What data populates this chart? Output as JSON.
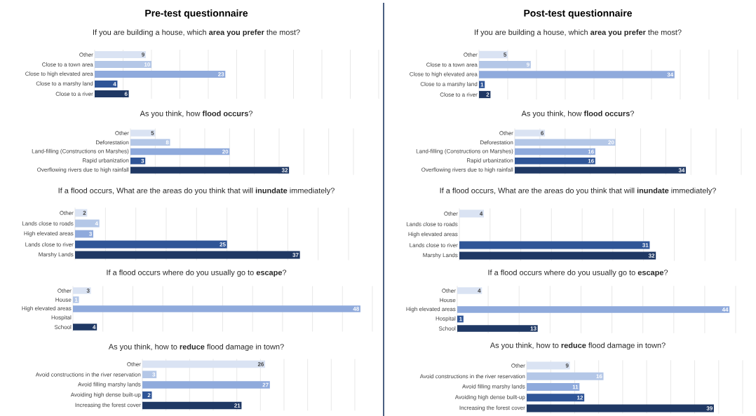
{
  "chart_data": [
    {
      "type": "bar",
      "orientation": "horizontal",
      "annotations": [
        "Pre-test questionnaire"
      ],
      "title": "If you are building a house, which **area you prefer** the most?",
      "categories": [
        "Other",
        "Close to a town area",
        "Close to high elevated area",
        "Close to a marshy land",
        "Close to a river"
      ],
      "values": [
        9,
        10,
        23,
        4,
        6
      ],
      "colors": [
        "#dae3f3",
        "#b4c7e7",
        "#8faadc",
        "#2f5597",
        "#1f3864"
      ],
      "data_labels": true,
      "grid": "x",
      "tick_labels": "y",
      "xlim": [
        0,
        50
      ],
      "xticks": [
        {
          "value": 0,
          "label": null
        },
        {
          "value": 5,
          "label": null
        },
        {
          "value": 10,
          "label": null
        },
        {
          "value": 15,
          "label": null
        },
        {
          "value": 20,
          "label": null
        },
        {
          "value": 25,
          "label": null
        },
        {
          "value": 30,
          "label": null
        },
        {
          "value": 35,
          "label": null
        },
        {
          "value": 40,
          "label": null
        },
        {
          "value": 45,
          "label": null
        },
        {
          "value": 50,
          "label": null
        }
      ]
    },
    {
      "type": "bar",
      "orientation": "horizontal",
      "title": "As you think, how **flood occurs**?",
      "categories": [
        "Other",
        "Deforestation",
        "Land-filling (Constructions on Marshes)",
        "Rapid urbanization",
        "Overflowing rivers due to high rainfall"
      ],
      "values": [
        5,
        8,
        20,
        3,
        32
      ],
      "colors": [
        "#dae3f3",
        "#b4c7e7",
        "#8faadc",
        "#2f5597",
        "#1f3864"
      ],
      "data_labels": true,
      "grid": "x",
      "tick_labels": "y",
      "xlim": [
        0,
        45
      ],
      "xticks": [
        {
          "value": 0,
          "label": null
        },
        {
          "value": 5,
          "label": null
        },
        {
          "value": 10,
          "label": null
        },
        {
          "value": 15,
          "label": null
        },
        {
          "value": 20,
          "label": null
        },
        {
          "value": 25,
          "label": null
        },
        {
          "value": 30,
          "label": null
        },
        {
          "value": 35,
          "label": null
        },
        {
          "value": 40,
          "label": null
        },
        {
          "value": 45,
          "label": null
        }
      ]
    },
    {
      "type": "bar",
      "orientation": "horizontal",
      "title": "If a flood occurs, What are the areas do you think that will **inundate** immediately?",
      "categories": [
        "Other",
        "Lands close to roads",
        "High elevated areas",
        "Lands close to river",
        "Marshy Lands"
      ],
      "values": [
        2,
        4,
        3,
        25,
        37
      ],
      "colors": [
        "#dae3f3",
        "#b4c7e7",
        "#8faadc",
        "#2f5597",
        "#1f3864"
      ],
      "data_labels": true,
      "grid": "x",
      "tick_labels": "y",
      "xlim": [
        0,
        45
      ],
      "xticks": [
        {
          "value": 0,
          "label": null
        },
        {
          "value": 5,
          "label": null
        },
        {
          "value": 10,
          "label": null
        },
        {
          "value": 15,
          "label": null
        },
        {
          "value": 20,
          "label": null
        },
        {
          "value": 25,
          "label": null
        },
        {
          "value": 30,
          "label": null
        },
        {
          "value": 35,
          "label": null
        },
        {
          "value": 40,
          "label": null
        },
        {
          "value": 45,
          "label": null
        }
      ]
    },
    {
      "type": "bar",
      "orientation": "horizontal",
      "title": "If a flood occurs where do you usually go to **escape**?",
      "categories": [
        "Other",
        "House",
        "High elevated areas",
        "Hospital",
        "School"
      ],
      "values": [
        3,
        1,
        48,
        null,
        4
      ],
      "colors": [
        "#dae3f3",
        "#b4c7e7",
        "#8faadc",
        "#2f5597",
        "#1f3864"
      ],
      "data_labels": true,
      "grid": "x",
      "tick_labels": "y",
      "xlim": [
        0,
        50
      ],
      "xticks": [
        {
          "value": 0,
          "label": null
        },
        {
          "value": 5,
          "label": null
        },
        {
          "value": 10,
          "label": null
        },
        {
          "value": 15,
          "label": null
        },
        {
          "value": 20,
          "label": null
        },
        {
          "value": 25,
          "label": null
        },
        {
          "value": 30,
          "label": null
        },
        {
          "value": 35,
          "label": null
        },
        {
          "value": 40,
          "label": null
        },
        {
          "value": 45,
          "label": null
        },
        {
          "value": 50,
          "label": null
        }
      ]
    },
    {
      "type": "bar",
      "orientation": "horizontal",
      "title": "As you think, how to **reduce** flood damage in town?",
      "categories": [
        "Other",
        "Avoid constructions in the river reservation",
        "Avoid filling marshy lands",
        "Avoiding high dense built-up",
        "Increasing the forest cover"
      ],
      "values": [
        26,
        3,
        27,
        2,
        21
      ],
      "colors": [
        "#dae3f3",
        "#b4c7e7",
        "#8faadc",
        "#2f5597",
        "#1f3864"
      ],
      "data_labels": true,
      "grid": "x",
      "tick_labels": "y",
      "xlim": [
        0,
        45
      ],
      "xticks": [
        {
          "value": 0,
          "label": null
        },
        {
          "value": 5,
          "label": null
        },
        {
          "value": 10,
          "label": null
        },
        {
          "value": 15,
          "label": null
        },
        {
          "value": 20,
          "label": null
        },
        {
          "value": 25,
          "label": null
        },
        {
          "value": 30,
          "label": null
        },
        {
          "value": 35,
          "label": null
        },
        {
          "value": 40,
          "label": null
        },
        {
          "value": 45,
          "label": null
        }
      ]
    },
    {
      "type": "bar",
      "orientation": "horizontal",
      "annotations": [
        "Post-test questionnaire"
      ],
      "title": "If you are building a house, which **area you prefer** the most?",
      "categories": [
        "Other",
        "Close to a town area",
        "Close to high elevated area",
        "Close to a marshy land",
        "Close to a river"
      ],
      "values": [
        5,
        9,
        34,
        1,
        2
      ],
      "colors": [
        "#dae3f3",
        "#b4c7e7",
        "#8faadc",
        "#2f5597",
        "#1f3864"
      ],
      "data_labels": true,
      "grid": "x",
      "tick_labels": "y",
      "xlim": [
        0,
        45
      ],
      "xticks": [
        {
          "value": 0,
          "label": null
        },
        {
          "value": 5,
          "label": null
        },
        {
          "value": 10,
          "label": null
        },
        {
          "value": 15,
          "label": null
        },
        {
          "value": 20,
          "label": null
        },
        {
          "value": 25,
          "label": null
        },
        {
          "value": 30,
          "label": null
        },
        {
          "value": 35,
          "label": null
        },
        {
          "value": 40,
          "label": null
        },
        {
          "value": 45,
          "label": null
        }
      ]
    },
    {
      "type": "bar",
      "orientation": "horizontal",
      "title": "As you think, how **flood occurs**?",
      "categories": [
        "Other",
        "Deforestation",
        "Land-filling (Constructions on Marshes)",
        "Rapid urbanization",
        "Overflowing rivers due to high rainfall"
      ],
      "values": [
        6,
        20,
        16,
        16,
        34
      ],
      "colors": [
        "#dae3f3",
        "#b4c7e7",
        "#8faadc",
        "#2f5597",
        "#1f3864"
      ],
      "data_labels": true,
      "grid": "x",
      "tick_labels": "y",
      "xlim": [
        0,
        45
      ],
      "xticks": [
        {
          "value": 0,
          "label": null
        },
        {
          "value": 5,
          "label": null
        },
        {
          "value": 10,
          "label": null
        },
        {
          "value": 15,
          "label": null
        },
        {
          "value": 20,
          "label": null
        },
        {
          "value": 25,
          "label": null
        },
        {
          "value": 30,
          "label": null
        },
        {
          "value": 35,
          "label": null
        },
        {
          "value": 40,
          "label": null
        },
        {
          "value": 45,
          "label": null
        }
      ]
    },
    {
      "type": "bar",
      "orientation": "horizontal",
      "title": "If a flood occurs, What are the areas do you think that will **inundate** immediately?",
      "categories": [
        "Other",
        "Lands close to roads",
        "High elevated areas",
        "Lands close to river",
        "Marshy Lands"
      ],
      "values": [
        4,
        null,
        null,
        31,
        32
      ],
      "colors": [
        "#dae3f3",
        "#b4c7e7",
        "#8faadc",
        "#2f5597",
        "#1f3864"
      ],
      "data_labels": true,
      "grid": "x",
      "tick_labels": "y",
      "xlim": [
        0,
        45
      ],
      "xticks": [
        {
          "value": 0,
          "label": null
        },
        {
          "value": 5,
          "label": null
        },
        {
          "value": 10,
          "label": null
        },
        {
          "value": 15,
          "label": null
        },
        {
          "value": 20,
          "label": null
        },
        {
          "value": 25,
          "label": null
        },
        {
          "value": 30,
          "label": null
        },
        {
          "value": 35,
          "label": null
        },
        {
          "value": 40,
          "label": null
        },
        {
          "value": 45,
          "label": null
        }
      ]
    },
    {
      "type": "bar",
      "orientation": "horizontal",
      "title": "If a flood occurs where do you usually go to **escape**?",
      "categories": [
        "Other",
        "House",
        "High elevated areas",
        "Hospital",
        "School"
      ],
      "values": [
        4,
        null,
        44,
        1,
        13
      ],
      "colors": [
        "#dae3f3",
        "#b4c7e7",
        "#8faadc",
        "#2f5597",
        "#1f3864"
      ],
      "data_labels": true,
      "grid": "x",
      "tick_labels": "y",
      "xlim": [
        0,
        45
      ],
      "xticks": [
        {
          "value": 0,
          "label": null
        },
        {
          "value": 5,
          "label": null
        },
        {
          "value": 10,
          "label": null
        },
        {
          "value": 15,
          "label": null
        },
        {
          "value": 20,
          "label": null
        },
        {
          "value": 25,
          "label": null
        },
        {
          "value": 30,
          "label": null
        },
        {
          "value": 35,
          "label": null
        },
        {
          "value": 40,
          "label": null
        },
        {
          "value": 45,
          "label": null
        }
      ]
    },
    {
      "type": "bar",
      "orientation": "horizontal",
      "title": "As you think, how to **reduce** flood damage in town?",
      "categories": [
        "Other",
        "Avoid constructions in the river reservation",
        "Avoid filling marshy lands",
        "Avoiding high dense built-up",
        "Increasing the forest cover"
      ],
      "values": [
        9,
        16,
        11,
        12,
        39
      ],
      "colors": [
        "#dae3f3",
        "#b4c7e7",
        "#8faadc",
        "#2f5597",
        "#1f3864"
      ],
      "data_labels": true,
      "grid": "x",
      "tick_labels": "y",
      "xlim": [
        0,
        45
      ],
      "xticks": [
        {
          "value": 0,
          "label": null
        },
        {
          "value": 5,
          "label": null
        },
        {
          "value": 10,
          "label": null
        },
        {
          "value": 15,
          "label": null
        },
        {
          "value": 20,
          "label": null
        },
        {
          "value": 25,
          "label": null
        },
        {
          "value": 30,
          "label": null
        },
        {
          "value": 35,
          "label": null
        },
        {
          "value": 40,
          "label": null
        },
        {
          "value": 45,
          "label": null
        }
      ]
    }
  ]
}
